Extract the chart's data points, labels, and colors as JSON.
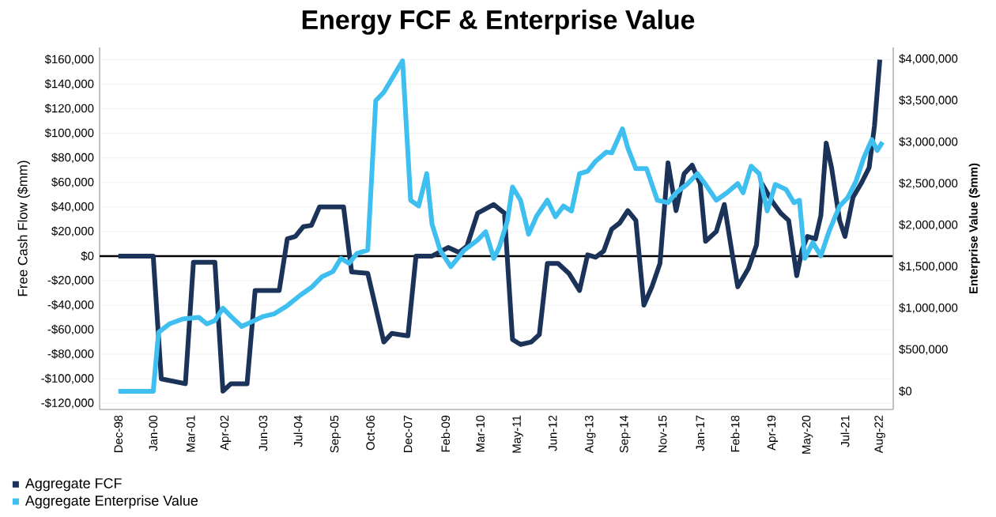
{
  "chart_data": {
    "type": "line",
    "title": "Energy FCF & Enterprise Value",
    "ylabel": "Free Cash Flow ($mm)",
    "y2label": "Enterprise Value ($mm)",
    "xlim": [
      "1998-05",
      "2023-01"
    ],
    "xticks": [
      {
        "value": "1998-12",
        "label": "Dec-98"
      },
      {
        "value": "2000-01",
        "label": "Jan-00"
      },
      {
        "value": "2001-03",
        "label": "Mar-01"
      },
      {
        "value": "2002-04",
        "label": "Apr-02"
      },
      {
        "value": "2003-06",
        "label": "Jun-03"
      },
      {
        "value": "2004-07",
        "label": "Jul-04"
      },
      {
        "value": "2005-09",
        "label": "Sep-05"
      },
      {
        "value": "2006-10",
        "label": "Oct-06"
      },
      {
        "value": "2007-12",
        "label": "Dec-07"
      },
      {
        "value": "2009-02",
        "label": "Feb-09"
      },
      {
        "value": "2010-03",
        "label": "Mar-10"
      },
      {
        "value": "2011-05",
        "label": "May-11"
      },
      {
        "value": "2012-06",
        "label": "Jun-12"
      },
      {
        "value": "2013-08",
        "label": "Aug-13"
      },
      {
        "value": "2014-09",
        "label": "Sep-14"
      },
      {
        "value": "2015-11",
        "label": "Nov-15"
      },
      {
        "value": "2017-01",
        "label": "Jan-17"
      },
      {
        "value": "2018-02",
        "label": "Feb-18"
      },
      {
        "value": "2019-04",
        "label": "Apr-19"
      },
      {
        "value": "2020-05",
        "label": "May-20"
      },
      {
        "value": "2021-07",
        "label": "Jul-21"
      },
      {
        "value": "2022-08",
        "label": "Aug-22"
      }
    ],
    "ylim": [
      -125000,
      170000
    ],
    "yticks": [
      {
        "value": -120000,
        "label": "-$120,000"
      },
      {
        "value": -100000,
        "label": "-$100,000"
      },
      {
        "value": -80000,
        "label": "-$80,000"
      },
      {
        "value": -60000,
        "label": "-$60,000"
      },
      {
        "value": -40000,
        "label": "-$40,000"
      },
      {
        "value": -20000,
        "label": "-$20,000"
      },
      {
        "value": 0,
        "label": "$0"
      },
      {
        "value": 20000,
        "label": "$20,000"
      },
      {
        "value": 40000,
        "label": "$40,000"
      },
      {
        "value": 60000,
        "label": "$60,000"
      },
      {
        "value": 80000,
        "label": "$80,000"
      },
      {
        "value": 100000,
        "label": "$100,000"
      },
      {
        "value": 120000,
        "label": "$120,000"
      },
      {
        "value": 140000,
        "label": "$140,000"
      },
      {
        "value": 160000,
        "label": "$160,000"
      }
    ],
    "y2lim": [
      -220000,
      4140000
    ],
    "y2ticks": [
      {
        "value": 0,
        "label": "$0"
      },
      {
        "value": 500000,
        "label": "$500,000"
      },
      {
        "value": 1000000,
        "label": "$1,000,000"
      },
      {
        "value": 1500000,
        "label": "$1,500,000"
      },
      {
        "value": 2000000,
        "label": "$2,000,000"
      },
      {
        "value": 2500000,
        "label": "$2,500,000"
      },
      {
        "value": 3000000,
        "label": "$3,000,000"
      },
      {
        "value": 3500000,
        "label": "$3,500,000"
      },
      {
        "value": 4000000,
        "label": "$4,000,000"
      }
    ],
    "grid": "y",
    "legend": "bottom left",
    "marker": "none",
    "line_style": "solid",
    "ref_lines": [
      {
        "axis": "y",
        "value": 0,
        "color": "#000000"
      }
    ],
    "series": [
      {
        "name": "Aggregate FCF",
        "color": "#1b3358",
        "x": [
          "1998-12",
          "2000-01",
          "2000-04",
          "2001-01",
          "2001-04",
          "2001-12",
          "2002-03",
          "2002-06",
          "2002-12",
          "2003-03",
          "2003-12",
          "2004-03",
          "2004-06",
          "2004-09",
          "2004-12",
          "2005-03",
          "2005-12",
          "2006-03",
          "2006-09",
          "2007-03",
          "2007-06",
          "2007-12",
          "2008-03",
          "2008-09",
          "2009-03",
          "2009-07",
          "2009-10",
          "2010-02",
          "2010-08",
          "2010-12",
          "2011-03",
          "2011-06",
          "2011-10",
          "2012-01",
          "2012-04",
          "2012-08",
          "2012-12",
          "2013-04",
          "2013-07",
          "2013-10",
          "2014-01",
          "2014-04",
          "2014-07",
          "2014-10",
          "2015-01",
          "2015-04",
          "2015-07",
          "2015-10",
          "2016-01",
          "2016-04",
          "2016-07",
          "2016-10",
          "2017-01",
          "2017-03",
          "2017-07",
          "2017-10",
          "2018-01",
          "2018-03",
          "2018-07",
          "2018-10",
          "2018-12",
          "2019-04",
          "2019-07",
          "2019-10",
          "2020-01",
          "2020-03",
          "2020-05",
          "2020-08",
          "2020-10",
          "2020-12",
          "2021-02",
          "2021-05",
          "2021-07",
          "2021-10",
          "2022-01",
          "2022-04",
          "2022-06",
          "2022-08"
        ],
        "values": [
          0,
          0,
          -100000,
          -104000,
          -5000,
          -5000,
          -110000,
          -104000,
          -104000,
          -28000,
          -28000,
          14000,
          16000,
          24000,
          25000,
          40000,
          40000,
          -13000,
          -14000,
          -70000,
          -63000,
          -65000,
          0,
          0,
          7000,
          3000,
          8000,
          35000,
          42000,
          35000,
          -68000,
          -72000,
          -70000,
          -64000,
          -6000,
          -6000,
          -14000,
          -28000,
          1000,
          -1000,
          4000,
          22000,
          27000,
          37000,
          29000,
          -40000,
          -25000,
          -6000,
          76000,
          37000,
          67000,
          74000,
          59000,
          12000,
          20000,
          42000,
          1000,
          -25000,
          -10000,
          9000,
          59000,
          44000,
          35000,
          29000,
          -16000,
          5000,
          16000,
          14000,
          33000,
          92000,
          72000,
          29000,
          16000,
          48000,
          59000,
          72000,
          106000,
          160000
        ]
      },
      {
        "name": "Aggregate Enterprise Value",
        "color": "#3fbef0",
        "axis": "y2",
        "x": [
          "1998-12",
          "2000-01",
          "2000-03",
          "2000-07",
          "2000-12",
          "2001-06",
          "2001-09",
          "2001-12",
          "2002-03",
          "2002-06",
          "2002-10",
          "2003-02",
          "2003-06",
          "2003-10",
          "2004-03",
          "2004-08",
          "2004-12",
          "2005-04",
          "2005-08",
          "2005-11",
          "2006-02",
          "2006-05",
          "2006-09",
          "2006-12",
          "2007-03",
          "2007-10",
          "2008-01",
          "2008-04",
          "2008-07",
          "2008-09",
          "2008-12",
          "2009-04",
          "2009-09",
          "2010-02",
          "2010-05",
          "2010-08",
          "2010-10",
          "2011-01",
          "2011-03",
          "2011-06",
          "2011-09",
          "2011-12",
          "2012-04",
          "2012-07",
          "2012-10",
          "2013-01",
          "2013-04",
          "2013-07",
          "2013-10",
          "2014-02",
          "2014-04",
          "2014-08",
          "2014-10",
          "2015-01",
          "2015-05",
          "2015-09",
          "2016-01",
          "2016-04",
          "2016-08",
          "2016-12",
          "2017-03",
          "2017-07",
          "2017-11",
          "2018-03",
          "2018-05",
          "2018-08",
          "2018-11",
          "2019-02",
          "2019-05",
          "2019-09",
          "2019-12",
          "2020-02",
          "2020-04",
          "2020-07",
          "2020-10",
          "2021-01",
          "2021-05",
          "2021-08",
          "2021-11",
          "2022-02",
          "2022-05",
          "2022-07",
          "2022-09"
        ],
        "values": [
          0,
          0,
          710000,
          810000,
          870000,
          890000,
          810000,
          850000,
          1000000,
          900000,
          780000,
          840000,
          900000,
          930000,
          1030000,
          1160000,
          1250000,
          1380000,
          1440000,
          1600000,
          1540000,
          1660000,
          1700000,
          3500000,
          3600000,
          3980000,
          2300000,
          2230000,
          2620000,
          2010000,
          1700000,
          1500000,
          1700000,
          1820000,
          1920000,
          1600000,
          1730000,
          2040000,
          2460000,
          2300000,
          1890000,
          2110000,
          2300000,
          2100000,
          2230000,
          2170000,
          2620000,
          2650000,
          2770000,
          2880000,
          2870000,
          3160000,
          2930000,
          2680000,
          2680000,
          2300000,
          2270000,
          2390000,
          2490000,
          2620000,
          2490000,
          2300000,
          2390000,
          2500000,
          2390000,
          2710000,
          2620000,
          2170000,
          2490000,
          2430000,
          2270000,
          2300000,
          1600000,
          1790000,
          1630000,
          1920000,
          2230000,
          2330000,
          2520000,
          2810000,
          3030000,
          2900000,
          3000000
        ]
      }
    ]
  }
}
